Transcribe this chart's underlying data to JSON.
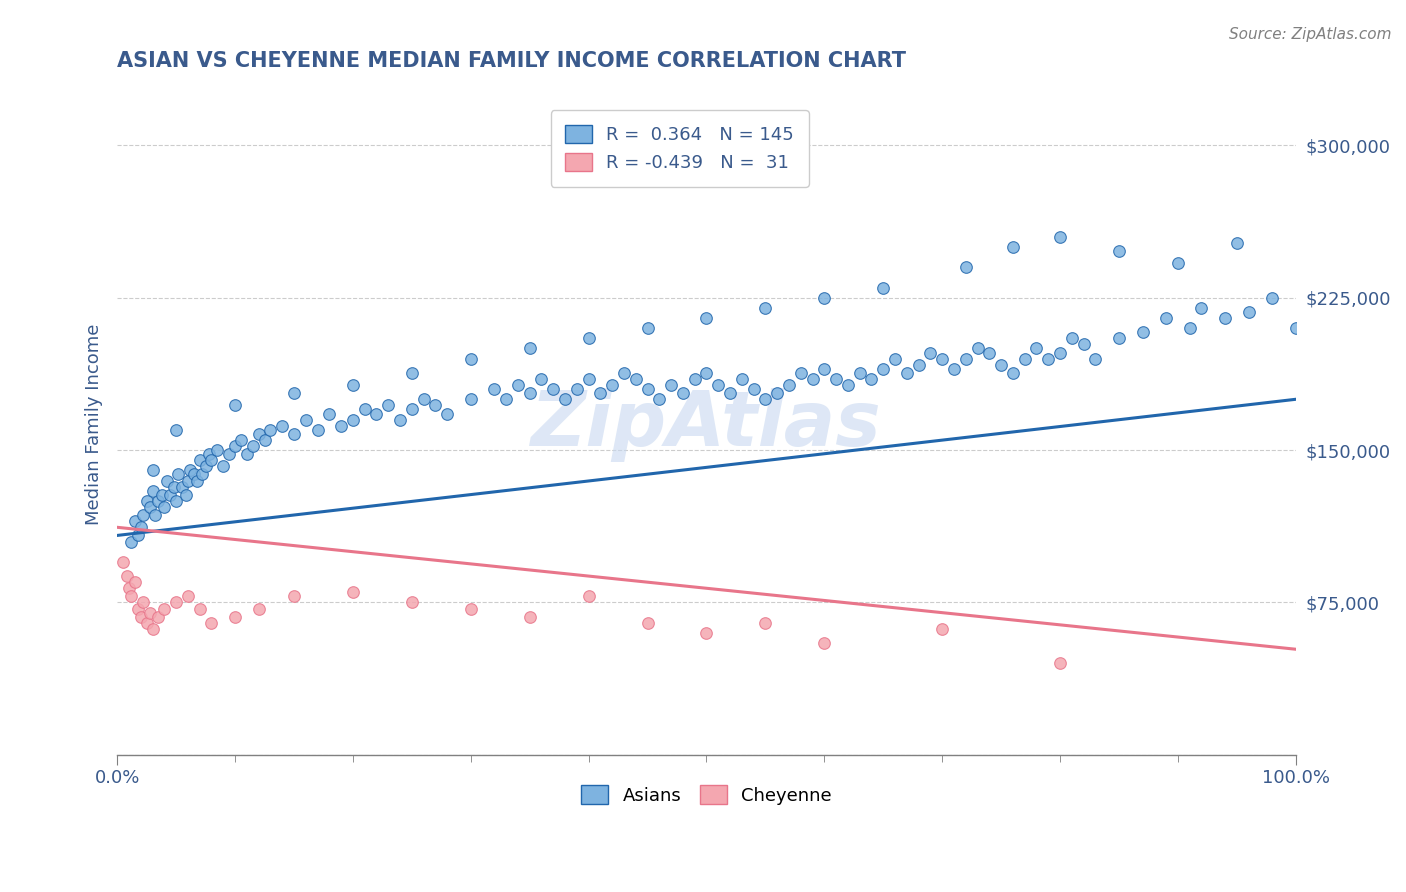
{
  "title": "ASIAN VS CHEYENNE MEDIAN FAMILY INCOME CORRELATION CHART",
  "source": "Source: ZipAtlas.com",
  "ylabel": "Median Family Income",
  "xlim": [
    0.0,
    100.0
  ],
  "ylim": [
    0,
    325000
  ],
  "yticks": [
    0,
    75000,
    150000,
    225000,
    300000
  ],
  "ytick_labels": [
    "",
    "$75,000",
    "$150,000",
    "$225,000",
    "$300,000"
  ],
  "asian_color": "#7EB3E0",
  "cheyenne_color": "#F4A7B0",
  "asian_line_color": "#2166AC",
  "cheyenne_line_color": "#E8758A",
  "r_asian": 0.364,
  "n_asian": 145,
  "r_cheyenne": -0.439,
  "n_cheyenne": 31,
  "background_color": "#FFFFFF",
  "grid_color": "#CCCCCC",
  "title_color": "#3A5A8C",
  "axis_label_color": "#3A5A8C",
  "tick_label_color": "#3A5A8C",
  "watermark_color": "#C8D8F0",
  "asian_scatter_x": [
    1.2,
    1.5,
    1.8,
    2.0,
    2.2,
    2.5,
    2.8,
    3.0,
    3.2,
    3.5,
    3.8,
    4.0,
    4.2,
    4.5,
    4.8,
    5.0,
    5.2,
    5.5,
    5.8,
    6.0,
    6.2,
    6.5,
    6.8,
    7.0,
    7.2,
    7.5,
    7.8,
    8.0,
    8.5,
    9.0,
    9.5,
    10.0,
    10.5,
    11.0,
    11.5,
    12.0,
    12.5,
    13.0,
    14.0,
    15.0,
    16.0,
    17.0,
    18.0,
    19.0,
    20.0,
    21.0,
    22.0,
    23.0,
    24.0,
    25.0,
    26.0,
    27.0,
    28.0,
    30.0,
    32.0,
    33.0,
    34.0,
    35.0,
    36.0,
    37.0,
    38.0,
    39.0,
    40.0,
    41.0,
    42.0,
    43.0,
    44.0,
    45.0,
    46.0,
    47.0,
    48.0,
    49.0,
    50.0,
    51.0,
    52.0,
    53.0,
    54.0,
    55.0,
    56.0,
    57.0,
    58.0,
    59.0,
    60.0,
    61.0,
    62.0,
    63.0,
    64.0,
    65.0,
    66.0,
    67.0,
    68.0,
    69.0,
    70.0,
    71.0,
    72.0,
    73.0,
    74.0,
    75.0,
    76.0,
    77.0,
    78.0,
    79.0,
    80.0,
    81.0,
    82.0,
    83.0,
    85.0,
    87.0,
    89.0,
    91.0,
    72.0,
    76.0,
    80.0,
    85.0,
    90.0,
    95.0,
    65.0,
    60.0,
    55.0,
    50.0,
    45.0,
    40.0,
    35.0,
    30.0,
    25.0,
    20.0,
    15.0,
    10.0,
    5.0,
    3.0,
    92.0,
    94.0,
    96.0,
    98.0,
    100.0
  ],
  "asian_scatter_y": [
    105000,
    115000,
    108000,
    112000,
    118000,
    125000,
    122000,
    130000,
    118000,
    125000,
    128000,
    122000,
    135000,
    128000,
    132000,
    125000,
    138000,
    132000,
    128000,
    135000,
    140000,
    138000,
    135000,
    145000,
    138000,
    142000,
    148000,
    145000,
    150000,
    142000,
    148000,
    152000,
    155000,
    148000,
    152000,
    158000,
    155000,
    160000,
    162000,
    158000,
    165000,
    160000,
    168000,
    162000,
    165000,
    170000,
    168000,
    172000,
    165000,
    170000,
    175000,
    172000,
    168000,
    175000,
    180000,
    175000,
    182000,
    178000,
    185000,
    180000,
    175000,
    180000,
    185000,
    178000,
    182000,
    188000,
    185000,
    180000,
    175000,
    182000,
    178000,
    185000,
    188000,
    182000,
    178000,
    185000,
    180000,
    175000,
    178000,
    182000,
    188000,
    185000,
    190000,
    185000,
    182000,
    188000,
    185000,
    190000,
    195000,
    188000,
    192000,
    198000,
    195000,
    190000,
    195000,
    200000,
    198000,
    192000,
    188000,
    195000,
    200000,
    195000,
    198000,
    205000,
    202000,
    195000,
    205000,
    208000,
    215000,
    210000,
    240000,
    250000,
    255000,
    248000,
    242000,
    252000,
    230000,
    225000,
    220000,
    215000,
    210000,
    205000,
    200000,
    195000,
    188000,
    182000,
    178000,
    172000,
    160000,
    140000,
    220000,
    215000,
    218000,
    225000,
    210000
  ],
  "cheyenne_scatter_x": [
    0.5,
    0.8,
    1.0,
    1.2,
    1.5,
    1.8,
    2.0,
    2.2,
    2.5,
    2.8,
    3.0,
    3.5,
    4.0,
    5.0,
    6.0,
    7.0,
    8.0,
    10.0,
    12.0,
    15.0,
    20.0,
    25.0,
    30.0,
    35.0,
    40.0,
    45.0,
    50.0,
    55.0,
    60.0,
    70.0,
    80.0
  ],
  "cheyenne_scatter_y": [
    95000,
    88000,
    82000,
    78000,
    85000,
    72000,
    68000,
    75000,
    65000,
    70000,
    62000,
    68000,
    72000,
    75000,
    78000,
    72000,
    65000,
    68000,
    72000,
    78000,
    80000,
    75000,
    72000,
    68000,
    78000,
    65000,
    60000,
    65000,
    55000,
    62000,
    45000
  ],
  "asian_line_x": [
    0.0,
    100.0
  ],
  "asian_line_y": [
    108000,
    175000
  ],
  "cheyenne_line_x": [
    0.0,
    100.0
  ],
  "cheyenne_line_y": [
    112000,
    52000
  ],
  "watermark_text": "ZipAtlas",
  "legend_border_color": "#CCCCCC"
}
